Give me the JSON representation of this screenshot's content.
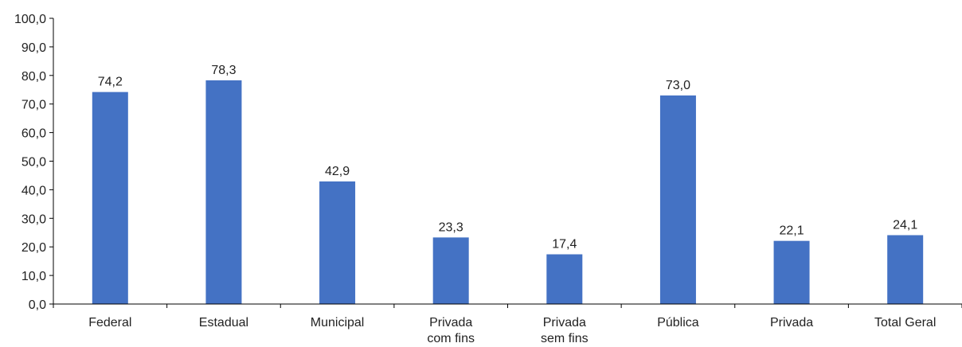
{
  "chart_data": {
    "type": "bar",
    "title": "",
    "xlabel": "",
    "ylabel": "",
    "categories": [
      [
        "Federal"
      ],
      [
        "Estadual"
      ],
      [
        "Municipal"
      ],
      [
        "Privada",
        "com fins"
      ],
      [
        "Privada",
        "sem fins"
      ],
      [
        "Pública"
      ],
      [
        "Privada"
      ],
      [
        "Total Geral"
      ]
    ],
    "values": [
      74.2,
      78.3,
      42.9,
      23.3,
      17.4,
      73.0,
      22.1,
      24.1
    ],
    "value_labels": [
      "74,2",
      "78,3",
      "42,9",
      "23,3",
      "17,4",
      "73,0",
      "22,1",
      "24,1"
    ],
    "ylim": [
      0,
      100
    ],
    "yticks": [
      0,
      10,
      20,
      30,
      40,
      50,
      60,
      70,
      80,
      90,
      100
    ],
    "ytick_labels": [
      "0,0",
      "10,0",
      "20,0",
      "30,0",
      "40,0",
      "50,0",
      "60,0",
      "70,0",
      "80,0",
      "90,0",
      "100,0"
    ],
    "grid": false,
    "legend": "none",
    "bar_color": "#4472C4"
  }
}
